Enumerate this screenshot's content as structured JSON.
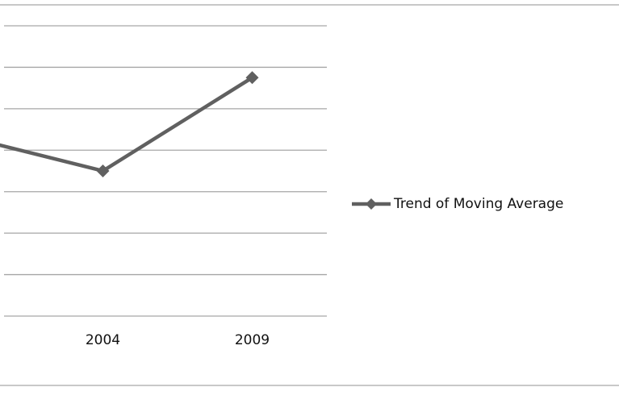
{
  "chart_data": {
    "type": "line",
    "categories": [
      null,
      "2004",
      "2009"
    ],
    "series": [
      {
        "name": "Trend of Moving Average",
        "color": "#606060",
        "values": [
          4.4,
          3.5,
          5.75
        ]
      }
    ],
    "ylim": [
      0,
      7
    ],
    "yticks": [
      0,
      1,
      2,
      3,
      4,
      5,
      6,
      7
    ],
    "grid": true,
    "legend": "right"
  }
}
